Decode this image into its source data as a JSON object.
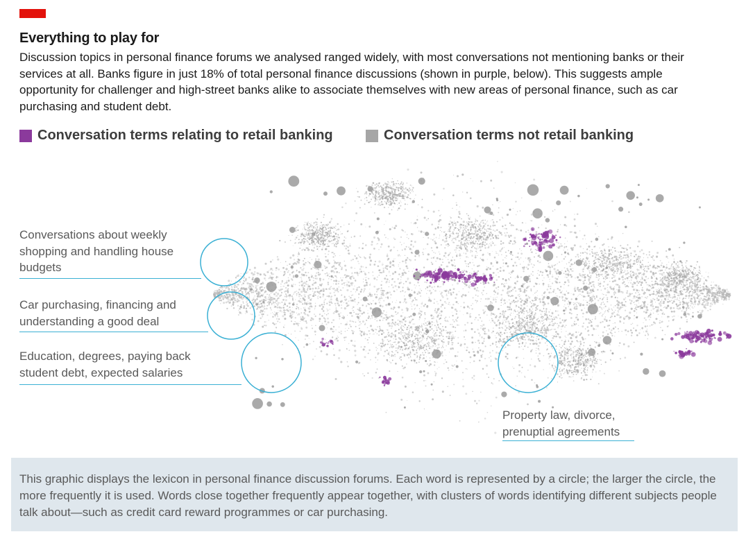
{
  "header": {
    "accent_color": "#e3120b",
    "title": "Everything to play for",
    "subtitle": "Discussion topics in personal finance forums we analysed ranged widely, with most conversations not mentioning banks or their services at all. Banks figure in just 18% of total personal finance discussions (shown in purple, below). This suggests ample opportunity for challenger and high-street banks alike to associate themselves with new areas of personal finance, such as car purchasing and student debt."
  },
  "legend": {
    "banking": {
      "label": "Conversation terms relating to retail banking",
      "color": "#8b3a9c"
    },
    "not_banking": {
      "label": "Conversation terms not retail banking",
      "color": "#a6a6a6"
    }
  },
  "annotations": {
    "shopping": "Conversations about weekly shopping and handling house budgets",
    "car": "Car purchasing, financing and understanding a  good deal",
    "education": "Education, degrees, paying back student debt, expected salaries",
    "property": "Property law, divorce, prenuptial agreements",
    "ring_color": "#3ab0d4"
  },
  "footer": {
    "text": "This graphic displays the lexicon in personal finance discussion forums. Each word is represented by a circle; the larger the circle, the more frequently it is used. Words close together frequently appear together, with clusters of words identifying different subjects people talk about—such as credit card reward programmes or car purchasing."
  }
}
